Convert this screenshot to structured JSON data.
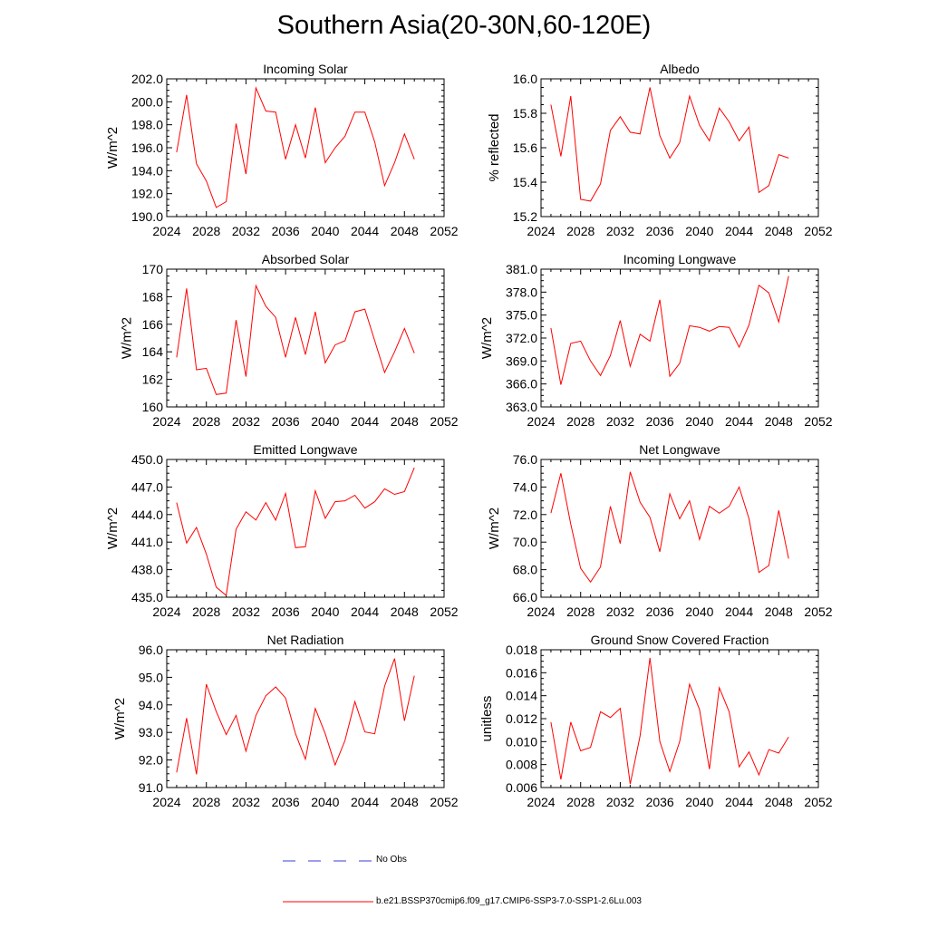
{
  "title": "Southern Asia(20-30N,60-120E)",
  "colors": {
    "series": "#ff0000",
    "obs": "#3b3bd6",
    "axis": "#000000"
  },
  "legend": {
    "no_obs_label": "No Obs",
    "run_label": "b.e21.BSSP370cmip6.f09_g17.CMIP6-SSP3-7.0-SSP1-2.6Lu.003"
  },
  "chart_data": [
    {
      "type": "line",
      "title": "Incoming Solar",
      "xlabel": "",
      "ylabel": "W/m^2",
      "xlim": [
        2024,
        2052
      ],
      "ylim": [
        190.0,
        202.0
      ],
      "xticks": [
        "2024",
        "2028",
        "2032",
        "2036",
        "2040",
        "2044",
        "2048",
        "2052"
      ],
      "yticks": [
        "190.0",
        "192.0",
        "194.0",
        "196.0",
        "198.0",
        "200.0",
        "202.0"
      ],
      "x": [
        2025,
        2026,
        2027,
        2028,
        2029,
        2030,
        2031,
        2032,
        2033,
        2034,
        2035,
        2036,
        2037,
        2038,
        2039,
        2040,
        2041,
        2042,
        2043,
        2044,
        2045,
        2046,
        2047,
        2048,
        2049
      ],
      "y": [
        195.6,
        200.6,
        194.6,
        193.1,
        190.8,
        191.3,
        198.1,
        193.7,
        201.2,
        199.2,
        199.1,
        195.0,
        198.0,
        195.1,
        199.5,
        194.7,
        196.0,
        197.0,
        199.1,
        199.1,
        196.5,
        192.7,
        194.7,
        197.2,
        195.0
      ]
    },
    {
      "type": "line",
      "title": "Albedo",
      "xlabel": "",
      "ylabel": "% reflected",
      "xlim": [
        2024,
        2052
      ],
      "ylim": [
        15.2,
        16.0
      ],
      "xticks": [
        "2024",
        "2028",
        "2032",
        "2036",
        "2040",
        "2044",
        "2048",
        "2052"
      ],
      "yticks": [
        "15.2",
        "15.4",
        "15.6",
        "15.8",
        "16.0"
      ],
      "x": [
        2025,
        2026,
        2027,
        2028,
        2029,
        2030,
        2031,
        2032,
        2033,
        2034,
        2035,
        2036,
        2037,
        2038,
        2039,
        2040,
        2041,
        2042,
        2043,
        2044,
        2045,
        2046,
        2047,
        2048,
        2049
      ],
      "y": [
        15.85,
        15.55,
        15.9,
        15.3,
        15.29,
        15.39,
        15.7,
        15.78,
        15.69,
        15.68,
        15.95,
        15.67,
        15.54,
        15.63,
        15.9,
        15.73,
        15.64,
        15.83,
        15.75,
        15.64,
        15.72,
        15.34,
        15.38,
        15.56,
        15.54
      ]
    },
    {
      "type": "line",
      "title": "Absorbed Solar",
      "xlabel": "",
      "ylabel": "W/m^2",
      "xlim": [
        2024,
        2052
      ],
      "ylim": [
        160,
        170
      ],
      "xticks": [
        "2024",
        "2028",
        "2032",
        "2036",
        "2040",
        "2044",
        "2048",
        "2052"
      ],
      "yticks": [
        "160",
        "162",
        "164",
        "166",
        "168",
        "170"
      ],
      "x": [
        2025,
        2026,
        2027,
        2028,
        2029,
        2030,
        2031,
        2032,
        2033,
        2034,
        2035,
        2036,
        2037,
        2038,
        2039,
        2040,
        2041,
        2042,
        2043,
        2044,
        2045,
        2046,
        2047,
        2048,
        2049
      ],
      "y": [
        163.6,
        168.6,
        162.7,
        162.8,
        160.9,
        161.0,
        166.3,
        162.2,
        168.8,
        167.3,
        166.5,
        163.6,
        166.5,
        163.8,
        166.9,
        163.2,
        164.5,
        164.8,
        166.9,
        167.1,
        164.8,
        162.5,
        164.0,
        165.7,
        163.9
      ]
    },
    {
      "type": "line",
      "title": "Incoming Longwave",
      "xlabel": "",
      "ylabel": "W/m^2",
      "xlim": [
        2024,
        2052
      ],
      "ylim": [
        363.0,
        381.0
      ],
      "xticks": [
        "2024",
        "2028",
        "2032",
        "2036",
        "2040",
        "2044",
        "2048",
        "2052"
      ],
      "yticks": [
        "363.0",
        "366.0",
        "369.0",
        "372.0",
        "375.0",
        "378.0",
        "381.0"
      ],
      "x": [
        2025,
        2026,
        2027,
        2028,
        2029,
        2030,
        2031,
        2032,
        2033,
        2034,
        2035,
        2036,
        2037,
        2038,
        2039,
        2040,
        2041,
        2042,
        2043,
        2044,
        2045,
        2046,
        2047,
        2048,
        2049
      ],
      "y": [
        373.3,
        365.9,
        371.3,
        371.6,
        369.0,
        367.1,
        369.7,
        374.3,
        368.3,
        372.5,
        371.6,
        377.0,
        367.0,
        368.7,
        373.6,
        373.4,
        372.9,
        373.5,
        373.4,
        370.8,
        373.7,
        378.9,
        377.9,
        374.1,
        380.1
      ]
    },
    {
      "type": "line",
      "title": "Emitted Longwave",
      "xlabel": "",
      "ylabel": "W/m^2",
      "xlim": [
        2024,
        2052
      ],
      "ylim": [
        435.0,
        450.0
      ],
      "xticks": [
        "2024",
        "2028",
        "2032",
        "2036",
        "2040",
        "2044",
        "2048",
        "2052"
      ],
      "yticks": [
        "435.0",
        "438.0",
        "441.0",
        "444.0",
        "447.0",
        "450.0"
      ],
      "x": [
        2025,
        2026,
        2027,
        2028,
        2029,
        2030,
        2031,
        2032,
        2033,
        2034,
        2035,
        2036,
        2037,
        2038,
        2039,
        2040,
        2041,
        2042,
        2043,
        2044,
        2045,
        2046,
        2047,
        2048,
        2049
      ],
      "y": [
        445.3,
        440.9,
        442.6,
        439.7,
        436.1,
        435.2,
        442.4,
        444.3,
        443.4,
        445.3,
        443.4,
        446.3,
        440.4,
        440.5,
        446.6,
        443.6,
        445.4,
        445.5,
        446.1,
        444.7,
        445.4,
        446.8,
        446.2,
        446.5,
        449.1
      ]
    },
    {
      "type": "line",
      "title": "Net Longwave",
      "xlabel": "",
      "ylabel": "W/m^2",
      "xlim": [
        2024,
        2052
      ],
      "ylim": [
        66.0,
        76.0
      ],
      "xticks": [
        "2024",
        "2028",
        "2032",
        "2036",
        "2040",
        "2044",
        "2048",
        "2052"
      ],
      "yticks": [
        "66.0",
        "68.0",
        "70.0",
        "72.0",
        "74.0",
        "76.0"
      ],
      "x": [
        2025,
        2026,
        2027,
        2028,
        2029,
        2030,
        2031,
        2032,
        2033,
        2034,
        2035,
        2036,
        2037,
        2038,
        2039,
        2040,
        2041,
        2042,
        2043,
        2044,
        2045,
        2046,
        2047,
        2048,
        2049
      ],
      "y": [
        72.1,
        75.0,
        71.3,
        68.1,
        67.1,
        68.2,
        72.6,
        69.9,
        75.1,
        72.9,
        71.8,
        69.3,
        73.5,
        71.7,
        73.0,
        70.2,
        72.6,
        72.1,
        72.6,
        74.0,
        71.7,
        67.8,
        68.3,
        72.3,
        68.8
      ]
    },
    {
      "type": "line",
      "title": "Net Radiation",
      "xlabel": "",
      "ylabel": "W/m^2",
      "xlim": [
        2024,
        2052
      ],
      "ylim": [
        91.0,
        96.0
      ],
      "xticks": [
        "2024",
        "2028",
        "2032",
        "2036",
        "2040",
        "2044",
        "2048",
        "2052"
      ],
      "yticks": [
        "91.0",
        "92.0",
        "93.0",
        "94.0",
        "95.0",
        "96.0"
      ],
      "x": [
        2025,
        2026,
        2027,
        2028,
        2029,
        2030,
        2031,
        2032,
        2033,
        2034,
        2035,
        2036,
        2037,
        2038,
        2039,
        2040,
        2041,
        2042,
        2043,
        2044,
        2045,
        2046,
        2047,
        2048,
        2049
      ],
      "y": [
        91.55,
        93.52,
        91.48,
        94.75,
        93.76,
        92.92,
        93.62,
        92.32,
        93.62,
        94.33,
        94.65,
        94.25,
        92.95,
        92.03,
        93.87,
        92.95,
        91.82,
        92.71,
        94.12,
        93.02,
        92.95,
        94.68,
        95.68,
        93.42,
        95.06
      ]
    },
    {
      "type": "line",
      "title": "Ground Snow Covered Fraction",
      "xlabel": "",
      "ylabel": "unitless",
      "xlim": [
        2024,
        2052
      ],
      "ylim": [
        0.006,
        0.018
      ],
      "xticks": [
        "2024",
        "2028",
        "2032",
        "2036",
        "2040",
        "2044",
        "2048",
        "2052"
      ],
      "yticks": [
        "0.006",
        "0.008",
        "0.010",
        "0.012",
        "0.014",
        "0.016",
        "0.018"
      ],
      "x": [
        2025,
        2026,
        2027,
        2028,
        2029,
        2030,
        2031,
        2032,
        2033,
        2034,
        2035,
        2036,
        2037,
        2038,
        2039,
        2040,
        2041,
        2042,
        2043,
        2044,
        2045,
        2046,
        2047,
        2048,
        2049
      ],
      "y": [
        0.0117,
        0.0067,
        0.0117,
        0.0092,
        0.0095,
        0.0126,
        0.0121,
        0.0129,
        0.0063,
        0.0105,
        0.0173,
        0.01,
        0.0074,
        0.01,
        0.015,
        0.0128,
        0.0076,
        0.0147,
        0.0126,
        0.0078,
        0.0091,
        0.0071,
        0.0093,
        0.009,
        0.0104
      ]
    }
  ]
}
